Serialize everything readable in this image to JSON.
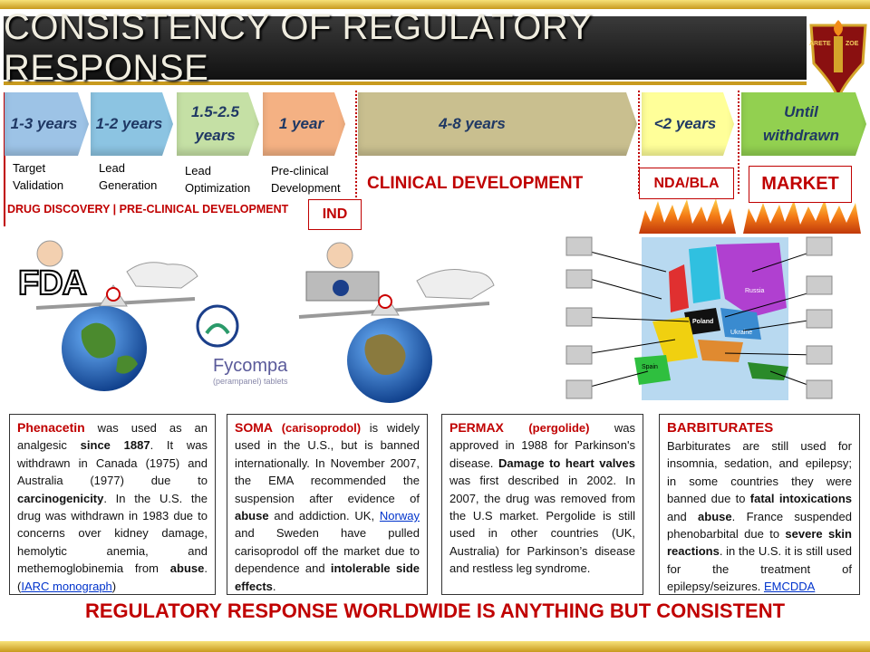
{
  "header": {
    "title": "CONSISTENCY OF REGULATORY RESPONSE",
    "logo": [
      "ARETE",
      "ZOE"
    ]
  },
  "stages": [
    {
      "duration": "1-3 years",
      "label": "Target Validation",
      "color": "#9dc3e6"
    },
    {
      "duration": "1-2 years",
      "label": "Lead Generation",
      "color": "#8cc4e2"
    },
    {
      "duration": "1.5-2.5 years",
      "label": "Lead Optimization",
      "color": "#c5e0a5"
    },
    {
      "duration": "1 year",
      "label": "Pre-clinical Development",
      "color": "#f4b183"
    },
    {
      "duration": "4-8 years",
      "color": "#c9bf8f"
    },
    {
      "duration": "<2 years",
      "color": "#ffff99"
    },
    {
      "duration": "Until withdrawn",
      "color": "#92d050"
    }
  ],
  "phases": {
    "discovery": "DRUG DISCOVERY | PRE-CLINICAL DEVELOPMENT",
    "ind": "IND",
    "clinical": "CLINICAL DEVELOPMENT",
    "nda": "NDA/BLA",
    "market": "MARKET"
  },
  "images": {
    "fda": "FDA",
    "fycompa": "Fycompa",
    "fycompa_sub": "(perampanel) tablets",
    "map_labels": [
      "Russia",
      "Poland",
      "Ukraine",
      "Spain"
    ]
  },
  "cases": [
    {
      "runs": [
        {
          "text": "Phenacetin",
          "style": "red"
        },
        {
          "text": " was used as an analgesic "
        },
        {
          "text": "since 1887",
          "style": "bold"
        },
        {
          "text": ". It was withdrawn in Canada (1975) and Australia (1977) due to "
        },
        {
          "text": "carcinogenicity",
          "style": "bold"
        },
        {
          "text": ". In the U.S. the drug was withdrawn in 1983 due to concerns over kidney damage, hemolytic anemia, and methemoglobinemia from "
        },
        {
          "text": "abuse",
          "style": "bold"
        },
        {
          "text": ". ("
        },
        {
          "text": "IARC monograph",
          "style": "link"
        },
        {
          "text": ")"
        }
      ]
    },
    {
      "runs": [
        {
          "text": "SOMA",
          "style": "red"
        },
        {
          "text": " "
        },
        {
          "text": "(carisoprodol)",
          "style": "red-small"
        },
        {
          "text": " is widely used in the U.S., but is banned internationally. In November 2007, the EMA recommended the suspension after evidence of "
        },
        {
          "text": "abuse",
          "style": "bold"
        },
        {
          "text": " and addiction. UK, "
        },
        {
          "text": "Norway",
          "style": "link"
        },
        {
          "text": " and Sweden have pulled carisoprodol off the market due to dependence and "
        },
        {
          "text": "intolerable side effects",
          "style": "bold"
        },
        {
          "text": "."
        }
      ]
    },
    {
      "runs": [
        {
          "text": "PERMAX",
          "style": "red"
        },
        {
          "text": " "
        },
        {
          "text": "(pergolide)",
          "style": "red-small"
        },
        {
          "text": " was approved in 1988 for Parkinson's disease. "
        },
        {
          "text": "Damage to heart valves",
          "style": "bold"
        },
        {
          "text": " was first described in 2002. In 2007, the drug was removed from the U.S market. Pergolide is still used in other countries (UK, Australia) for Parkinson’s disease and restless leg syndrome."
        }
      ]
    },
    {
      "runs": [
        {
          "text": "BARBITURATES",
          "style": "heading"
        },
        {
          "text": "Barbiturates are still used for insomnia, sedation, and epilepsy; in some countries they were banned due to "
        },
        {
          "text": "fatal intoxications",
          "style": "bold"
        },
        {
          "text": " and "
        },
        {
          "text": "abuse",
          "style": "bold"
        },
        {
          "text": ". France suspended phenobarbital due to "
        },
        {
          "text": "severe skin reactions",
          "style": "bold"
        },
        {
          "text": ". in the U.S. it is still used for the treatment of epilepsy/seizures. "
        },
        {
          "text": "EMCDDA",
          "style": "link"
        }
      ]
    }
  ],
  "footer": "REGULATORY RESPONSE WORLDWIDE IS ANYTHING BUT CONSISTENT"
}
